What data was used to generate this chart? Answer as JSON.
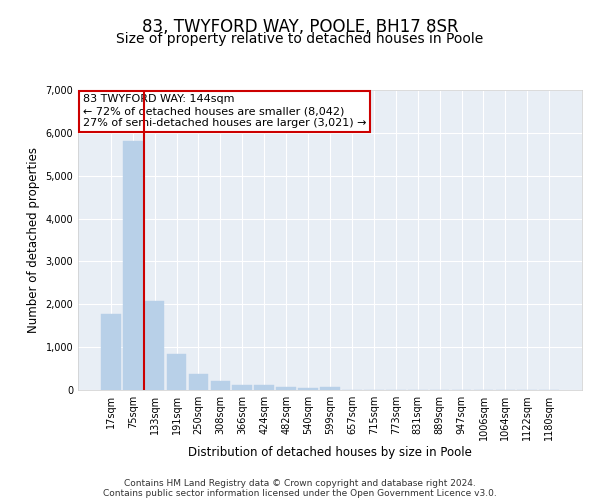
{
  "title": "83, TWYFORD WAY, POOLE, BH17 8SR",
  "subtitle": "Size of property relative to detached houses in Poole",
  "xlabel": "Distribution of detached houses by size in Poole",
  "ylabel": "Number of detached properties",
  "bar_labels": [
    "17sqm",
    "75sqm",
    "133sqm",
    "191sqm",
    "250sqm",
    "308sqm",
    "366sqm",
    "424sqm",
    "482sqm",
    "540sqm",
    "599sqm",
    "657sqm",
    "715sqm",
    "773sqm",
    "831sqm",
    "889sqm",
    "947sqm",
    "1006sqm",
    "1064sqm",
    "1122sqm",
    "1180sqm"
  ],
  "bar_values": [
    1780,
    5800,
    2070,
    830,
    380,
    220,
    115,
    110,
    75,
    55,
    75,
    0,
    0,
    0,
    0,
    0,
    0,
    0,
    0,
    0,
    0
  ],
  "bar_color": "#b8d0e8",
  "bar_edge_color": "#b8d0e8",
  "vline_color": "#cc0000",
  "annotation_text": "83 TWYFORD WAY: 144sqm\n← 72% of detached houses are smaller (8,042)\n27% of semi-detached houses are larger (3,021) →",
  "annotation_box_color": "#ffffff",
  "annotation_box_edge": "#cc0000",
  "ylim": [
    0,
    7000
  ],
  "yticks": [
    0,
    1000,
    2000,
    3000,
    4000,
    5000,
    6000,
    7000
  ],
  "background_color": "#e8eef5",
  "grid_color": "#ffffff",
  "footer_line1": "Contains HM Land Registry data © Crown copyright and database right 2024.",
  "footer_line2": "Contains public sector information licensed under the Open Government Licence v3.0.",
  "title_fontsize": 12,
  "subtitle_fontsize": 10,
  "axis_label_fontsize": 8.5,
  "tick_fontsize": 7,
  "footer_fontsize": 6.5,
  "annotation_fontsize": 8
}
